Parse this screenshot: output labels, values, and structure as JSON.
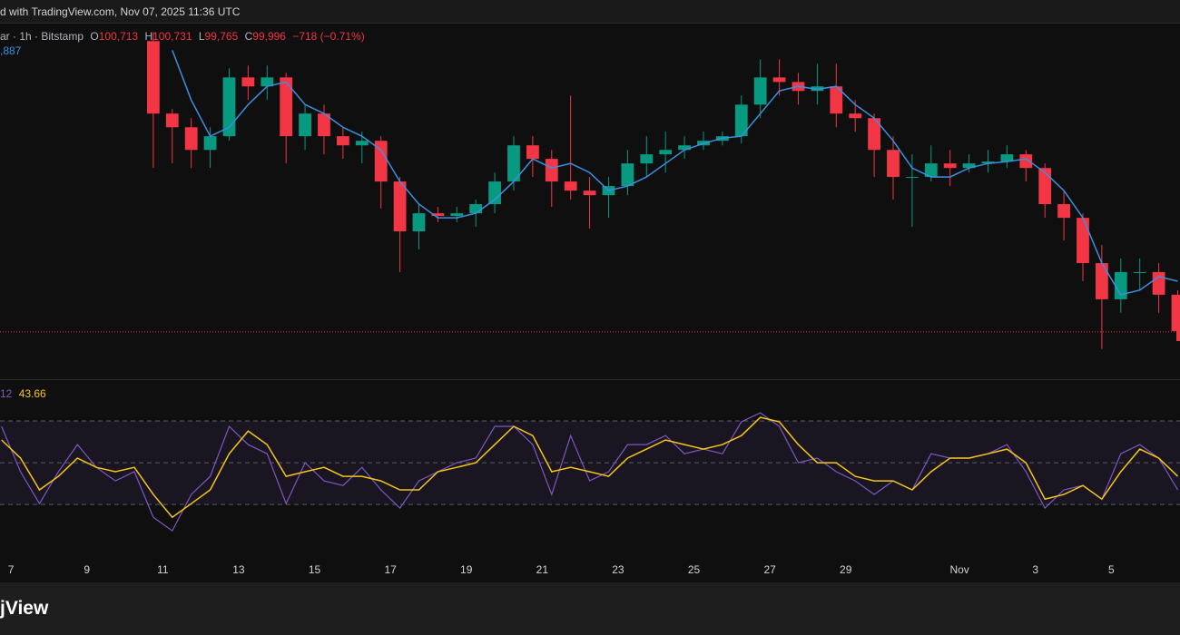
{
  "header": {
    "text": "d with TradingView.com, Nov 07, 2025 11:36 UTC"
  },
  "legend": {
    "symbol": "ar · 1h · Bitstamp",
    "ohlc": [
      {
        "label": "O",
        "value": "100,713"
      },
      {
        "label": "H",
        "value": "100,731"
      },
      {
        "label": "L",
        "value": "99,765"
      },
      {
        "label": "C",
        "value": "99,996"
      }
    ],
    "change": "−718 (−0.71%)",
    "ma": ",887"
  },
  "rsi_legend": {
    "rsi": "12",
    "rsi_ma": "43.66"
  },
  "footer": {
    "brand": "jView"
  },
  "chart_data": [
    {
      "type": "candlestick",
      "x": [
        10.75,
        11.25,
        11.75,
        12.25,
        12.75,
        13.25,
        13.75,
        14.25,
        14.75,
        15.25,
        15.75,
        16.25,
        16.75,
        17.25,
        17.75,
        18.25,
        18.75,
        19.25,
        19.75,
        20.25,
        20.75,
        21.25,
        21.75,
        22.25,
        22.75,
        23.25,
        23.75,
        24.25,
        24.75,
        25.25,
        25.75,
        26.25,
        26.75,
        27.25,
        27.75,
        28.25,
        28.75,
        29.25,
        29.75,
        30.25,
        30.75,
        31.25,
        31.75,
        32.25,
        32.75,
        33.25,
        33.75,
        34.25,
        34.75,
        35.25,
        35.75,
        36.25,
        36.75,
        37.25,
        37.75
      ],
      "open": [
        117210,
        112920,
        112110,
        110770,
        111580,
        115060,
        114530,
        115060,
        111580,
        112920,
        111580,
        111040,
        111310,
        108900,
        105950,
        107020,
        106860,
        107020,
        107560,
        108900,
        111040,
        110240,
        108900,
        108360,
        108090,
        108630,
        109970,
        110510,
        110770,
        111040,
        111310,
        111580,
        113450,
        115060,
        114790,
        114260,
        114530,
        112920,
        112650,
        110770,
        109170,
        109170,
        109970,
        109700,
        109970,
        110080,
        110510,
        109700,
        107560,
        106750,
        104070,
        101930,
        103540,
        103540,
        102200
      ],
      "high": [
        117740,
        113190,
        112650,
        112110,
        115600,
        115760,
        115760,
        115330,
        113450,
        113450,
        112110,
        111850,
        111580,
        109170,
        107560,
        107400,
        107400,
        107830,
        109430,
        111580,
        111580,
        110770,
        113990,
        109170,
        109170,
        110770,
        111580,
        111850,
        111580,
        111850,
        111850,
        113990,
        116130,
        116130,
        115330,
        115870,
        115870,
        113720,
        112920,
        111580,
        110510,
        111040,
        110770,
        110510,
        110770,
        111040,
        110770,
        109970,
        108360,
        107020,
        105150,
        104340,
        104340,
        104070,
        102470
      ],
      "low": [
        109700,
        109970,
        109700,
        109700,
        111310,
        113720,
        113720,
        109970,
        110770,
        110510,
        110240,
        109970,
        107290,
        103540,
        104880,
        106490,
        106490,
        106220,
        107020,
        108360,
        109170,
        107400,
        107830,
        106110,
        106750,
        108090,
        109170,
        109430,
        110240,
        110770,
        111040,
        111150,
        112650,
        113990,
        113450,
        113450,
        112110,
        111850,
        109170,
        107830,
        106220,
        108900,
        108630,
        109430,
        109430,
        109700,
        108900,
        106750,
        105410,
        103000,
        98980,
        101130,
        102470,
        101130,
        99520
      ],
      "close": [
        112920,
        112110,
        110770,
        111580,
        115060,
        114530,
        115060,
        111580,
        112920,
        111580,
        111040,
        111310,
        108900,
        105950,
        107020,
        106860,
        107020,
        107560,
        108900,
        111040,
        110240,
        108900,
        108360,
        108090,
        108630,
        109970,
        110510,
        110770,
        111040,
        111310,
        111580,
        113450,
        115060,
        114790,
        114260,
        114530,
        112920,
        112650,
        110770,
        109170,
        109170,
        109970,
        109700,
        109970,
        110080,
        110510,
        109700,
        107560,
        106750,
        104070,
        101930,
        103540,
        103540,
        102200,
        100050
      ],
      "up_color": "#089981",
      "down_color": "#f23645",
      "ma": {
        "color": "#3d8fe0",
        "values": [
          null,
          116670,
          113720,
          111580,
          112110,
          113450,
          114530,
          114790,
          113450,
          112920,
          112110,
          111580,
          110770,
          108900,
          107560,
          106750,
          106750,
          107020,
          107830,
          108900,
          110240,
          109700,
          109970,
          109430,
          108360,
          108630,
          109170,
          109970,
          110770,
          111150,
          111470,
          111580,
          112920,
          114260,
          114530,
          114360,
          114530,
          113450,
          112650,
          111310,
          109700,
          109170,
          109170,
          109700,
          109970,
          110080,
          110240,
          109430,
          108360,
          106750,
          104070,
          102200,
          102470,
          103270,
          103000
        ]
      },
      "price_line": 99996,
      "price_line_color": "#f23645",
      "xlim": [
        6.71,
        37.81
      ],
      "ylim": [
        97200,
        118300
      ]
    },
    {
      "type": "line",
      "x": [
        6.75,
        7.25,
        7.75,
        8.25,
        8.75,
        9.25,
        9.75,
        10.25,
        10.75,
        11.25,
        11.75,
        12.25,
        12.75,
        13.25,
        13.75,
        14.25,
        14.75,
        15.25,
        15.75,
        16.25,
        16.75,
        17.25,
        17.75,
        18.25,
        18.75,
        19.25,
        19.75,
        20.25,
        20.75,
        21.25,
        21.75,
        22.25,
        22.75,
        23.25,
        23.75,
        24.25,
        24.75,
        25.25,
        25.75,
        26.25,
        26.75,
        27.25,
        27.75,
        28.25,
        28.75,
        29.25,
        29.75,
        30.25,
        30.75,
        31.25,
        31.75,
        32.25,
        32.75,
        33.25,
        33.75,
        34.25,
        34.75,
        35.25,
        35.75,
        36.25,
        36.75,
        37.25,
        37.75
      ],
      "series": [
        {
          "color": "#7e57c2",
          "values": [
            67.4,
            45.7,
            30.4,
            45.7,
            58.7,
            47.8,
            41.3,
            45.7,
            23.9,
            17.4,
            34.8,
            43.5,
            67.4,
            58.7,
            54.3,
            30.4,
            50,
            41.3,
            39.1,
            47.8,
            37,
            28.3,
            41.3,
            45.7,
            50,
            52.2,
            67.4,
            67.4,
            58.7,
            34.8,
            63,
            41.3,
            45.7,
            58.7,
            58.7,
            63,
            54.3,
            56.5,
            54.3,
            69.6,
            73.9,
            67.4,
            50,
            52.2,
            45.7,
            41.3,
            34.8,
            41.3,
            37,
            54.3,
            52.2,
            52.2,
            54.3,
            58.7,
            45.7,
            28.3,
            37,
            39.1,
            32.6,
            54.3,
            58.7,
            52.2,
            37
          ]
        },
        {
          "color": "#f5c518",
          "values": [
            60.9,
            52.2,
            37,
            43.5,
            52.2,
            47.8,
            45.7,
            47.8,
            34.8,
            23.9,
            30.4,
            37,
            54.3,
            65.2,
            58.7,
            43.5,
            45.7,
            47.8,
            43.5,
            43.5,
            41.3,
            37,
            37,
            45.7,
            47.8,
            50,
            58.7,
            67.4,
            63,
            45.7,
            47.8,
            45.7,
            43.5,
            52.2,
            56.5,
            60.9,
            58.7,
            56.5,
            58.7,
            63,
            71.7,
            69.6,
            58.7,
            50,
            50,
            43.5,
            41.3,
            41.3,
            37,
            45.7,
            52.2,
            52.2,
            54.3,
            56.5,
            50,
            32.6,
            34.8,
            39.1,
            32.6,
            45.7,
            56.5,
            52.2,
            43.5
          ]
        }
      ],
      "levels": [
        70,
        50,
        30
      ],
      "band_color": "#7e57c2",
      "xlim": [
        6.71,
        37.81
      ],
      "ylim": [
        4,
        90
      ],
      "xticks": [
        7,
        9,
        11,
        13,
        15,
        17,
        19,
        21,
        23,
        25,
        27,
        29,
        {
          "value": 32,
          "label": "Nov"
        },
        {
          "value": 34,
          "label": "3"
        },
        {
          "value": 36,
          "label": "5"
        }
      ]
    }
  ]
}
